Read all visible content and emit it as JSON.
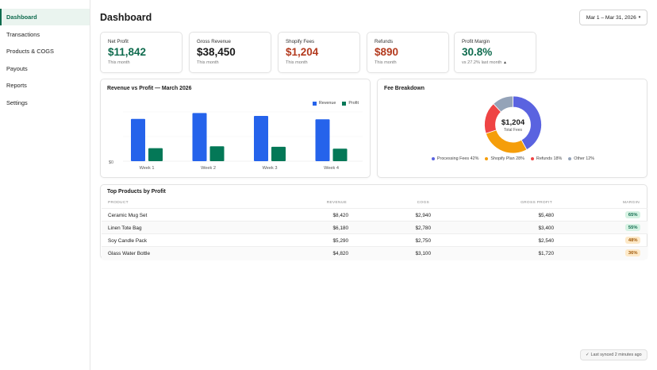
{
  "sidebar": {
    "items": [
      {
        "label": "Dashboard",
        "active": true
      },
      {
        "label": "Transactions"
      },
      {
        "label": "Products & COGS"
      },
      {
        "label": "Payouts"
      },
      {
        "label": "Reports"
      },
      {
        "label": "Settings"
      }
    ]
  },
  "header": {
    "title": "Dashboard",
    "date_range": "Mar 1 – Mar 31, 2026",
    "caret_icon": "caret-down-icon"
  },
  "kpis": [
    {
      "label": "Net Profit",
      "value": "$11,842",
      "sub": "This month",
      "color": "#0f6b4e"
    },
    {
      "label": "Gross Revenue",
      "value": "$38,450",
      "sub": "This month",
      "color": "#1a1a1a"
    },
    {
      "label": "Shopify Fees",
      "value": "$1,204",
      "sub": "This month",
      "color": "#b33a1e"
    },
    {
      "label": "Refunds",
      "value": "$890",
      "sub": "This month",
      "color": "#b33a1e"
    },
    {
      "label": "Profit Margin",
      "value": "30.8%",
      "sub": "vs 27.2% last month",
      "sub_icon": "▲",
      "color": "#0f6b4e"
    }
  ],
  "revenue_chart": {
    "title": "Revenue vs Profit — March 2026",
    "legend": [
      "Revenue",
      "Profit"
    ],
    "zero_label": "$0",
    "colors": {
      "revenue": "#2563eb",
      "profit": "#047857"
    }
  },
  "fee_chart": {
    "title": "Fee Breakdown",
    "center_value": "$1,204",
    "center_label": "Total Fees",
    "legend": [
      {
        "label": "Processing Fees 42%",
        "color": "#5a63e0"
      },
      {
        "label": "Shopify Plan 28%",
        "color": "#f59e0b"
      },
      {
        "label": "Refunds 18%",
        "color": "#ef4444"
      },
      {
        "label": "Other 12%",
        "color": "#94a3b8"
      }
    ]
  },
  "chart_data": [
    {
      "type": "bar",
      "title": "Revenue vs Profit — March 2026",
      "categories": [
        "Week 1",
        "Week 2",
        "Week 3",
        "Week 4"
      ],
      "series": [
        {
          "name": "Revenue",
          "values": [
            8800,
            10000,
            9400,
            8700
          ]
        },
        {
          "name": "Profit",
          "values": [
            2700,
            3100,
            3000,
            2600
          ]
        }
      ],
      "ylim": [
        0,
        10400
      ],
      "legend_position": "top-right"
    },
    {
      "type": "pie",
      "title": "Fee Breakdown",
      "categories": [
        "Processing Fees",
        "Shopify Plan",
        "Refunds",
        "Other"
      ],
      "values": [
        42,
        28,
        18,
        12
      ],
      "legend_position": "bottom"
    }
  ],
  "table": {
    "title": "Top Products by Profit",
    "headers": [
      "PRODUCT",
      "REVENUE",
      "COGS",
      "GROSS PROFIT",
      "MARGIN"
    ],
    "rows": [
      {
        "product": "Ceramic Mug Set",
        "revenue": "$8,420",
        "cogs": "$2,940",
        "profit": "$5,480",
        "margin": "65%"
      },
      {
        "product": "Linen Tote Bag",
        "revenue": "$6,180",
        "cogs": "$2,780",
        "profit": "$3,400",
        "margin": "55%"
      },
      {
        "product": "Soy Candle Pack",
        "revenue": "$5,290",
        "cogs": "$2,750",
        "profit": "$2,540",
        "margin": "48%"
      },
      {
        "product": "Glass Water Bottle",
        "revenue": "$4,820",
        "cogs": "$3,100",
        "profit": "$1,720",
        "margin": "36%"
      }
    ]
  },
  "footer": {
    "sync_icon": "✓",
    "sync_text": "Last synced 2 minutes ago"
  }
}
